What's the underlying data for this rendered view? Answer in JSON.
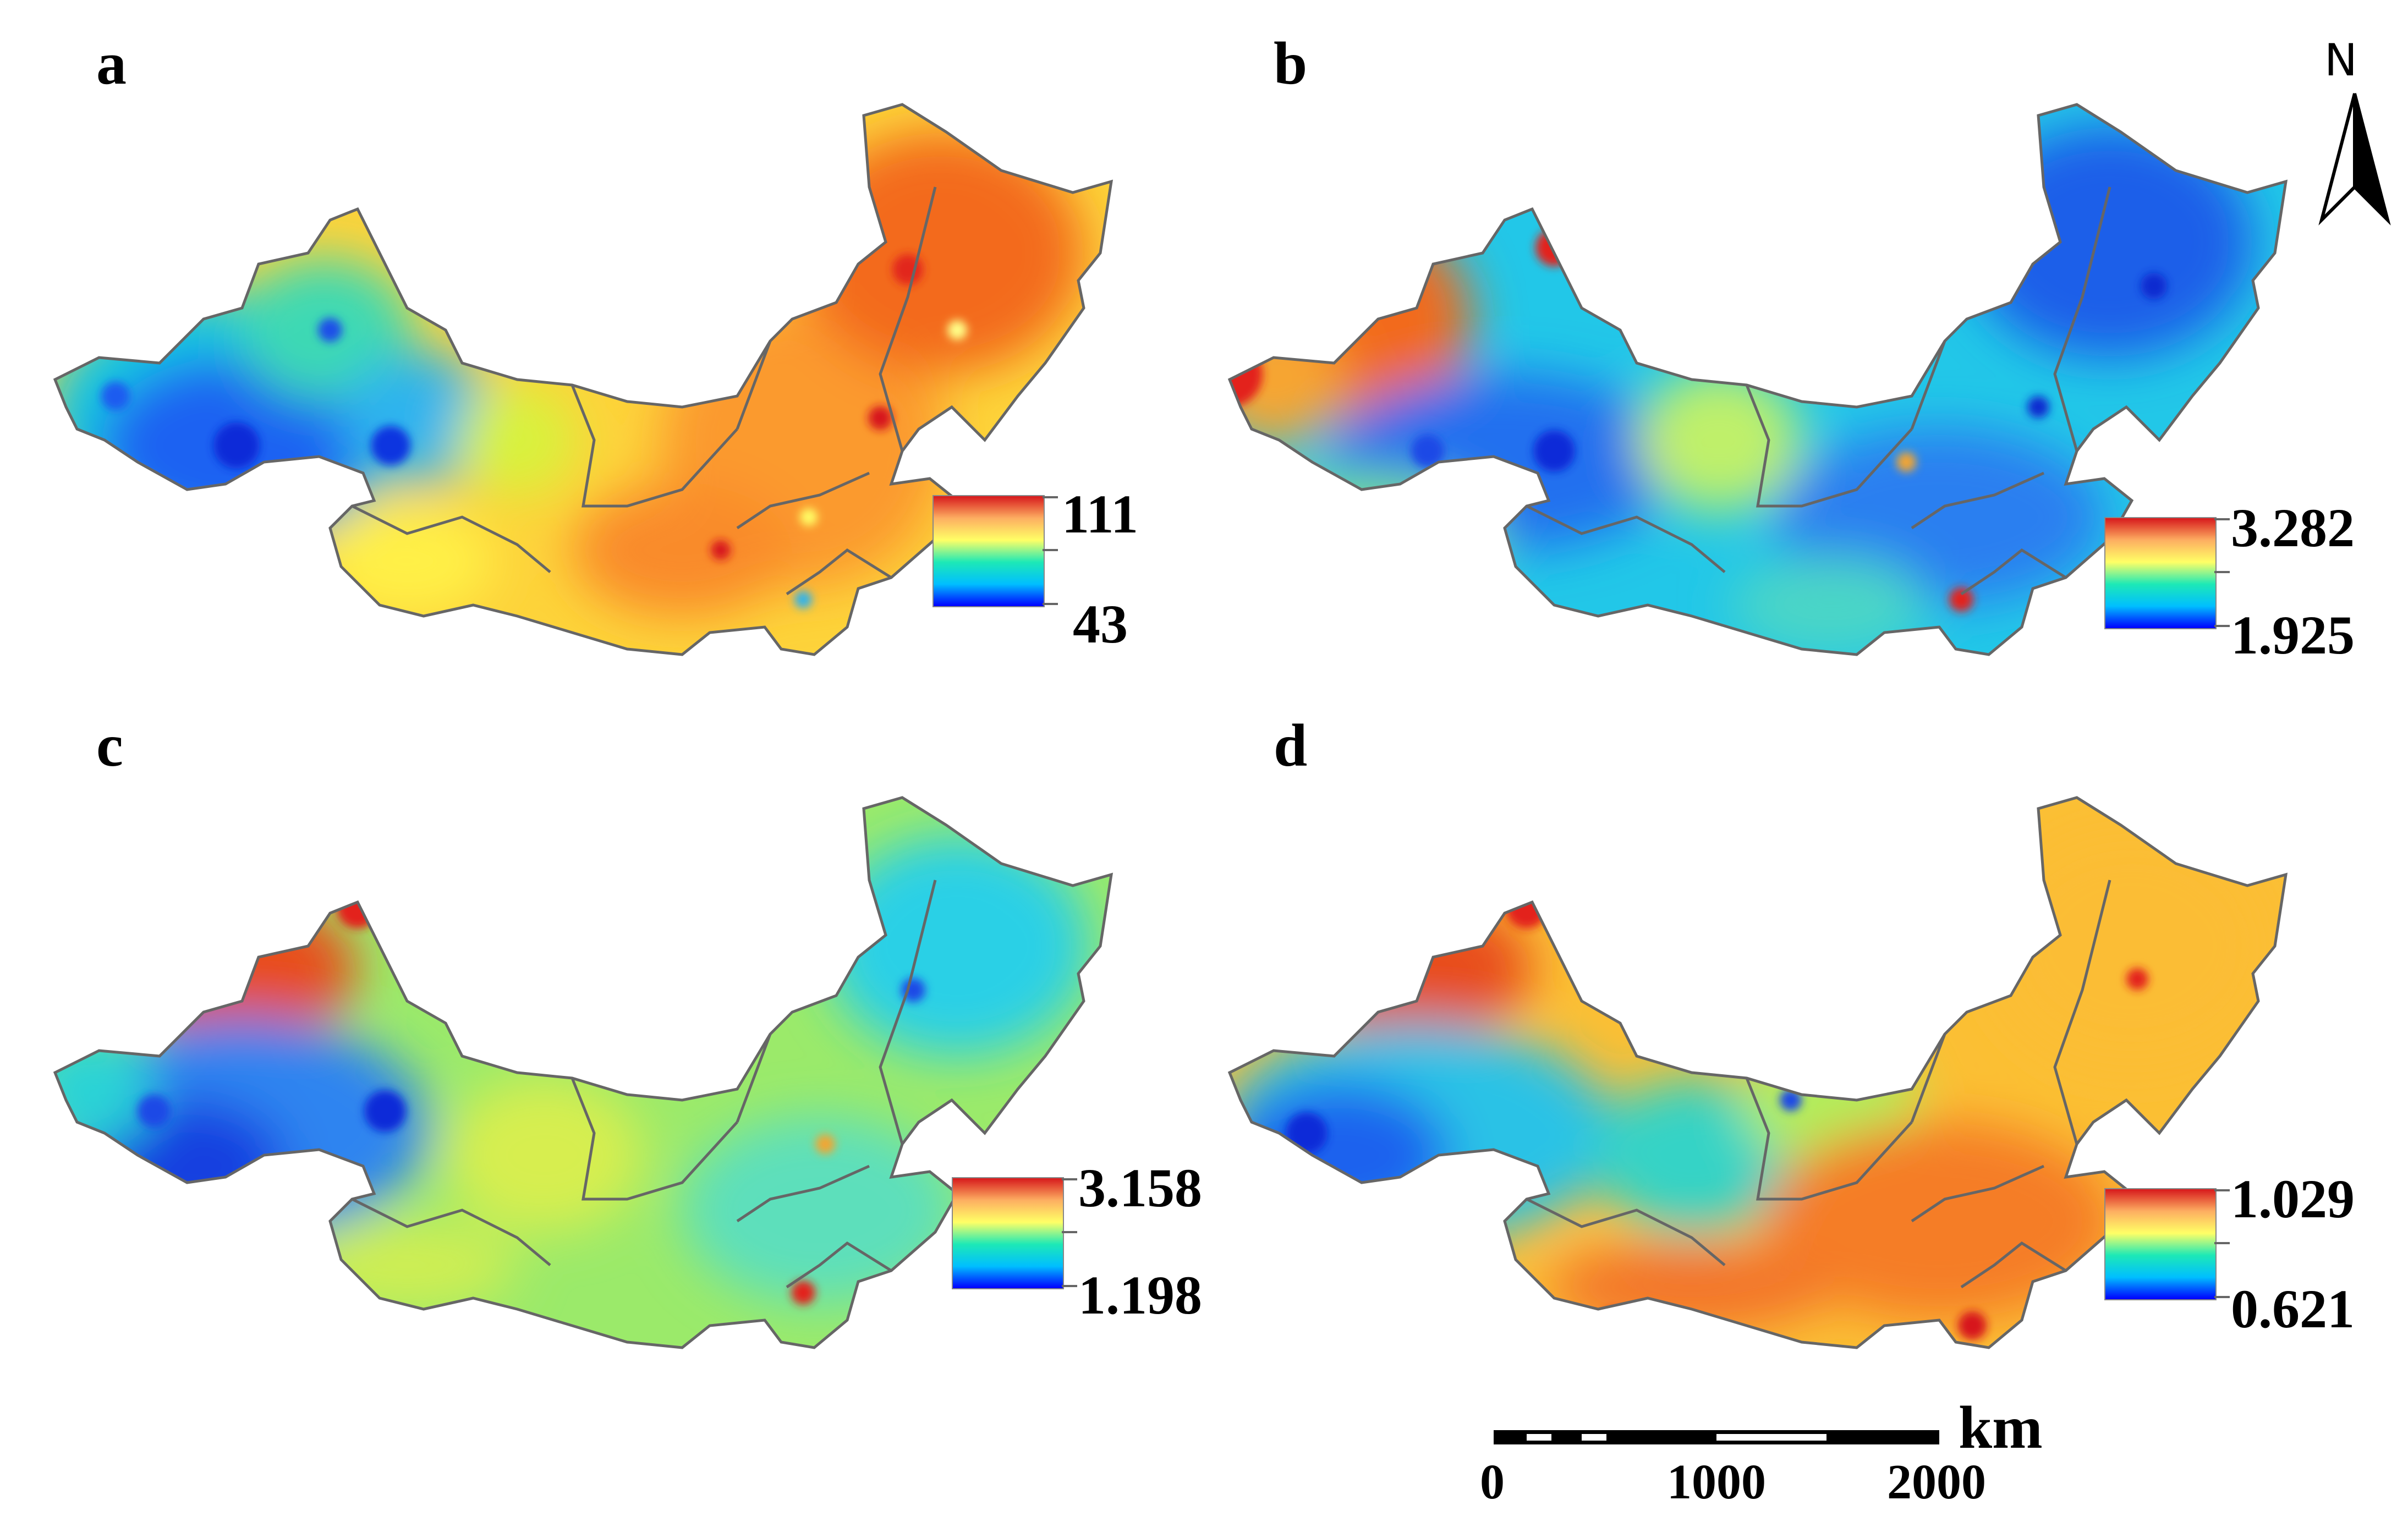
{
  "panels": [
    {
      "label": "a",
      "legend_max": "111",
      "legend_min": "43"
    },
    {
      "label": "b",
      "legend_max": "3.282",
      "legend_min": "1.925"
    },
    {
      "label": "c",
      "legend_max": "3.158",
      "legend_min": "1.198"
    },
    {
      "label": "d",
      "legend_max": "1.029",
      "legend_min": "0.621"
    }
  ],
  "legend_colors": [
    "#d7191c",
    "#fdae61",
    "#ffff66",
    "#1de9b6",
    "#00bfff",
    "#0000ff"
  ],
  "north_arrow": {
    "letter": "N",
    "icon": "north-arrow-icon"
  },
  "scale_bar": {
    "unit": "km",
    "labels": [
      "0",
      "1000",
      "2000"
    ]
  }
}
